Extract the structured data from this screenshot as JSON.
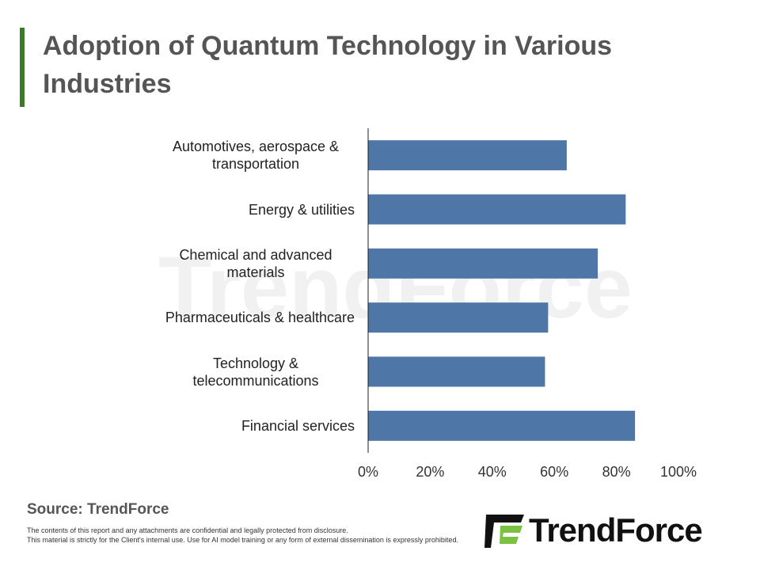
{
  "chart_data": {
    "type": "hbar",
    "title": "Adoption of Quantum Technology in Various Industries",
    "categories": [
      "Automotives, aerospace & transportation",
      "Energy & utilities",
      "Chemical and advanced materials",
      "Pharmaceuticals & healthcare",
      "Technology & telecommunications",
      "Financial services"
    ],
    "values": [
      64,
      83,
      74,
      58,
      57,
      86
    ],
    "color": "#4e76a6",
    "xlim": [
      0,
      100
    ],
    "xticks": [
      {
        "value": 0,
        "label": "0%"
      },
      {
        "value": 20,
        "label": "20%"
      },
      {
        "value": 40,
        "label": "40%"
      },
      {
        "value": 60,
        "label": "60%"
      },
      {
        "value": 80,
        "label": "80%"
      },
      {
        "value": 100,
        "label": "100%"
      }
    ],
    "grid": false
  },
  "footer": {
    "source": "Source: TrendForce",
    "disclaimer_1": "The contents of this report and any attachments are confidential and legally protected from disclosure.",
    "disclaimer_2": "This material is strictly for the Client's internal use. Use for AI model training or any form of external dissemination is expressly prohibited.",
    "logo": "TrendForce",
    "watermark": "TrendForce"
  }
}
